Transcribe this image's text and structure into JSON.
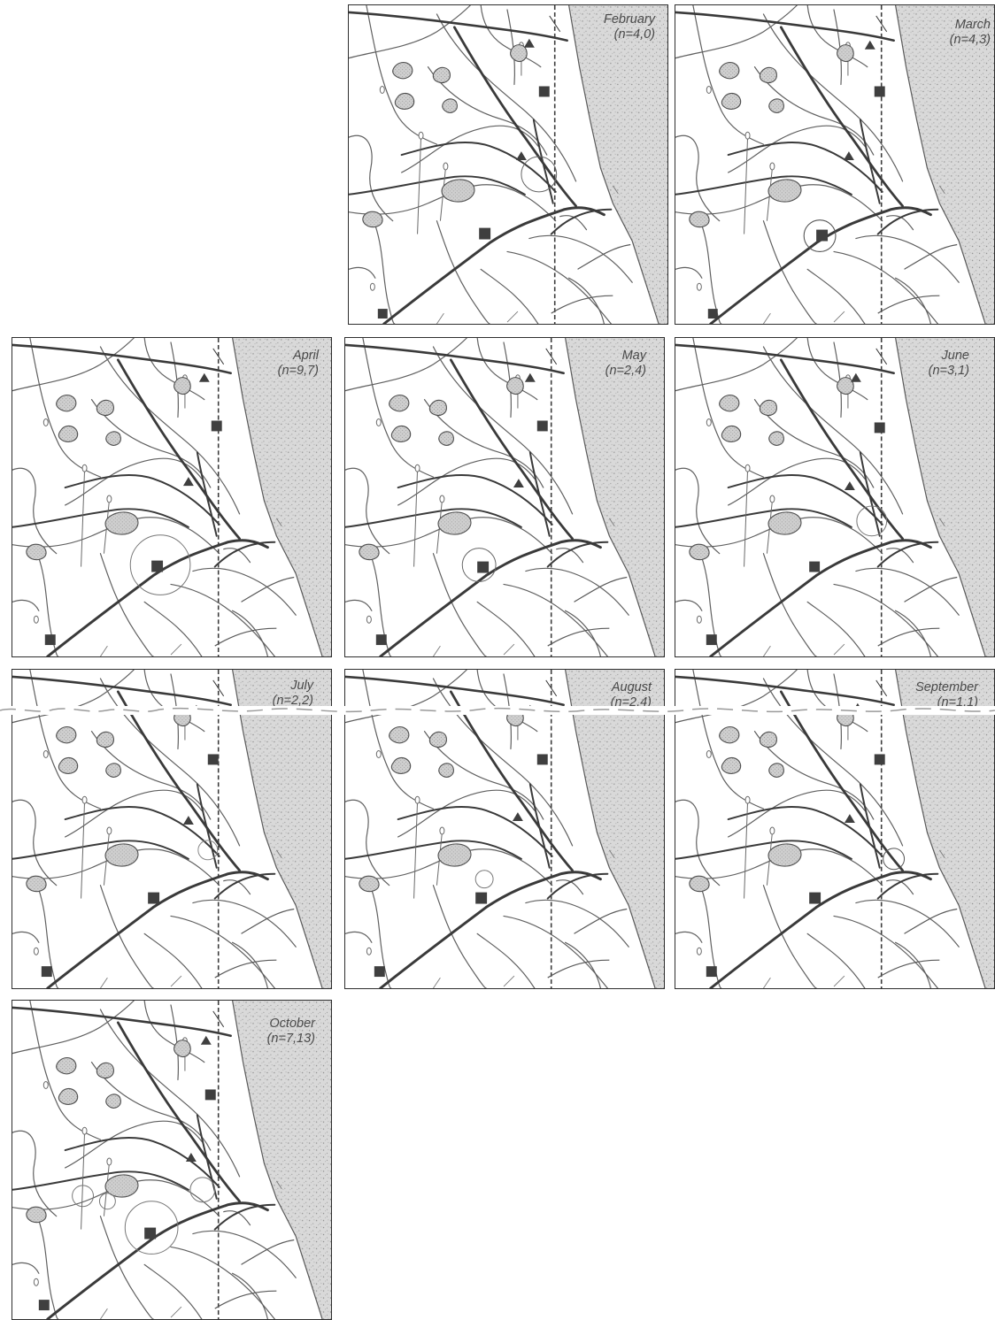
{
  "panels": [
    {
      "id": "february",
      "month": "February",
      "n": "(n=4,0)"
    },
    {
      "id": "march",
      "month": "March",
      "n": "(n=4,3)"
    },
    {
      "id": "april",
      "month": "April",
      "n": "(n=9,7)"
    },
    {
      "id": "may",
      "month": "May",
      "n": "(n=2,4)"
    },
    {
      "id": "june",
      "month": "June",
      "n": "(n=3,1)"
    },
    {
      "id": "july",
      "month": "July",
      "n": "(n=2,2)"
    },
    {
      "id": "august",
      "month": "August",
      "n": "(n=2,4)"
    },
    {
      "id": "september",
      "month": "September",
      "n": "(n=1,1)"
    },
    {
      "id": "october",
      "month": "October",
      "n": "(n=7,13)"
    }
  ],
  "colors": {
    "border": "#2e2e2e",
    "channel": "#555555",
    "major_channel": "#3a3a3a",
    "pond_fill": "#c9c9c9",
    "sea": "#d6d6d6",
    "marker": "#3f3f3f",
    "label": "#4a4a4a"
  },
  "icons": [
    "square-marker-icon",
    "triangle-marker-icon",
    "home-range-circle-icon"
  ]
}
